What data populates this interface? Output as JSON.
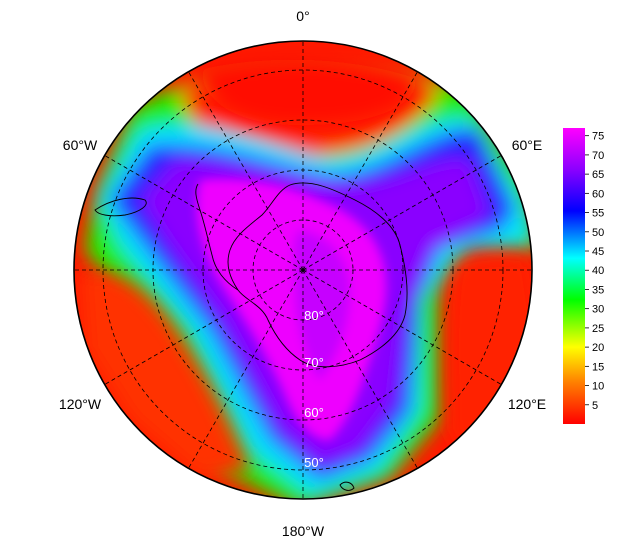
{
  "map": {
    "projection": "south-polar-stereographic",
    "longitude_labels": {
      "top": "0°",
      "upper_left": "60°W",
      "upper_right": "60°E",
      "lower_left": "120°W",
      "lower_right": "120°E",
      "bottom": "180°W"
    },
    "latitude_labels": [
      "80°",
      "70°",
      "60°",
      "50°"
    ],
    "graticule": {
      "latitudes": [
        80,
        70,
        60,
        50
      ],
      "longitudes_every_deg": 30,
      "style": "dashed"
    },
    "land_outline": [
      "Antarctica",
      "South America tip",
      "Antarctic Peninsula"
    ]
  },
  "colorbar": {
    "colormap": "rainbow (red to magenta)",
    "min": 0,
    "max": 77,
    "ticks": [
      "75",
      "70",
      "65",
      "60",
      "55",
      "50",
      "45",
      "40",
      "35",
      "30",
      "25",
      "20",
      "15",
      "10",
      "5"
    ],
    "colors": [
      "#ff0000",
      "#ff7f00",
      "#ffff00",
      "#00ff00",
      "#00ffff",
      "#0000ff",
      "#8b00ff",
      "#ff00ff"
    ]
  }
}
